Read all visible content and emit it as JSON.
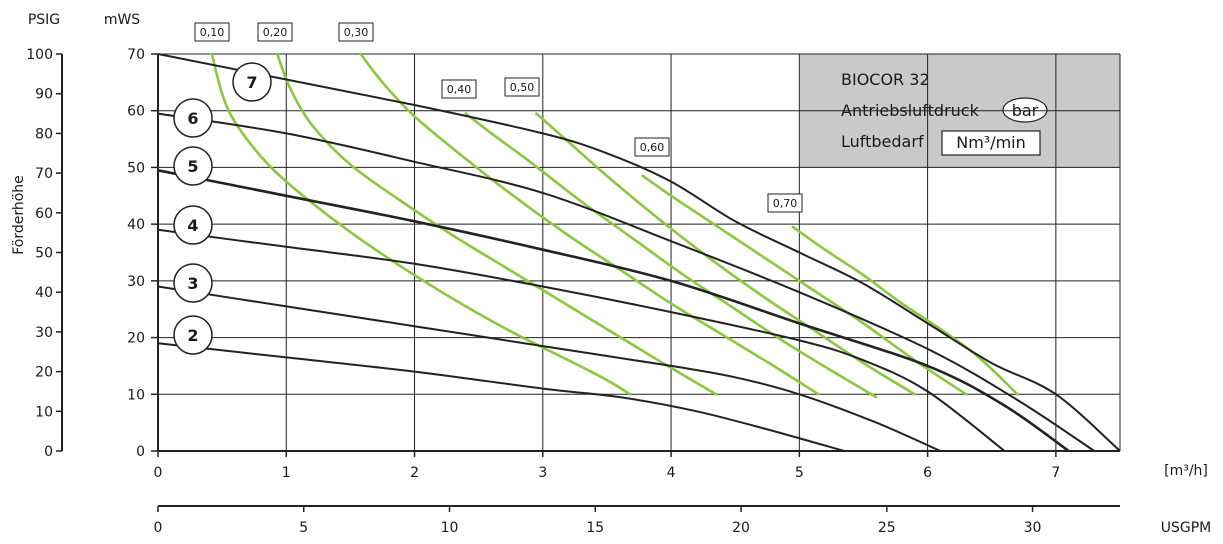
{
  "chart_data": {
    "type": "line",
    "title": "",
    "legend": {
      "model": "BIOCOR 32",
      "pressure_label": "Antriebsluftdruck",
      "pressure_unit": "bar",
      "air_label": "Luftbedarf",
      "air_unit": "Nm³/min"
    },
    "ylabel": "Förderhöhe",
    "unit_psig": "PSIG",
    "unit_mws": "mWS",
    "unit_flow_m3h": "[m³/h]",
    "unit_usgpm": "USGPM",
    "xlim": [
      0,
      7.5
    ],
    "ylim_mws": [
      0,
      70
    ],
    "ylim_psig": [
      0,
      100
    ],
    "usgpm_lim": [
      0,
      33
    ],
    "x_ticks": [
      "0",
      "1",
      "2",
      "3",
      "4",
      "5",
      "6",
      "7"
    ],
    "mws_ticks": [
      "0",
      "10",
      "20",
      "30",
      "40",
      "50",
      "60",
      "70"
    ],
    "psig_ticks": [
      "0",
      "10",
      "20",
      "30",
      "40",
      "50",
      "60",
      "70",
      "80",
      "90",
      "100"
    ],
    "usgpm_ticks": [
      "0",
      "5",
      "10",
      "15",
      "20",
      "25",
      "30"
    ],
    "pressure_series": [
      {
        "name": "2",
        "x": [
          0,
          1,
          2,
          3,
          3.6,
          4.2,
          4.8,
          5.35
        ],
        "y": [
          19,
          16.5,
          14,
          11,
          9.5,
          7,
          3.5,
          0
        ]
      },
      {
        "name": "3",
        "x": [
          0,
          1,
          2,
          3,
          4,
          4.5,
          5,
          5.6,
          6.1
        ],
        "y": [
          29,
          25.5,
          22,
          18.5,
          15,
          13,
          10,
          5,
          0
        ]
      },
      {
        "name": "4",
        "x": [
          0,
          1,
          2,
          3,
          4,
          5,
          5.5,
          6,
          6.6
        ],
        "y": [
          39,
          36,
          33,
          29,
          24.5,
          19.5,
          16,
          10.5,
          0
        ]
      },
      {
        "name": "5",
        "x": [
          0,
          1,
          2,
          3,
          4,
          5,
          6,
          6.6,
          7.1
        ],
        "y": [
          49.5,
          45,
          40.5,
          35.5,
          30,
          22.5,
          15,
          8,
          0
        ]
      },
      {
        "name": "6",
        "x": [
          0,
          1,
          2,
          3,
          4,
          5,
          6,
          6.7,
          7.3
        ],
        "y": [
          59.5,
          56,
          51,
          45.5,
          37,
          28,
          18,
          9,
          0
        ]
      },
      {
        "name": "7",
        "x": [
          0,
          1,
          2,
          3,
          3.5,
          4,
          4.5,
          5,
          5.5,
          6,
          6.5,
          7,
          7.5
        ],
        "y": [
          70,
          65.5,
          61,
          56,
          52.5,
          47.5,
          40.5,
          35,
          29.5,
          22.5,
          15.5,
          10,
          0
        ]
      }
    ],
    "air_series": [
      {
        "name": "0,10",
        "x": [
          0.42,
          0.5,
          0.6,
          0.8,
          1.0,
          1.3,
          1.6,
          2.0,
          2.4,
          2.8,
          3.2,
          3.5,
          3.68
        ],
        "y": [
          70,
          63,
          58,
          52,
          47.5,
          42,
          37,
          31,
          25.5,
          20.5,
          16,
          12.5,
          10
        ]
      },
      {
        "name": "0,20",
        "x": [
          0.93,
          1.03,
          1.2,
          1.5,
          1.9,
          2.3,
          2.7,
          3.1,
          3.5,
          3.9,
          4.35
        ],
        "y": [
          70,
          64,
          57.5,
          50.5,
          44,
          38,
          32.5,
          27,
          21.5,
          16,
          10
        ]
      },
      {
        "name": "0,30",
        "x": [
          1.58,
          1.75,
          2.0,
          2.4,
          2.8,
          3.2,
          3.6,
          4.0,
          4.4,
          4.8,
          5.15
        ],
        "y": [
          70,
          65,
          59,
          51.5,
          44.5,
          38,
          32,
          26,
          20.5,
          15,
          10
        ]
      },
      {
        "name": "0,40",
        "x": [
          2.4,
          2.6,
          2.9,
          3.3,
          3.7,
          4.1,
          4.5,
          4.9,
          5.3,
          5.6
        ],
        "y": [
          59.5,
          56,
          51,
          44,
          37.5,
          31,
          25,
          19,
          13.5,
          9.5
        ]
      },
      {
        "name": "0,50",
        "x": [
          2.95,
          3.2,
          3.5,
          3.9,
          4.3,
          4.7,
          5.1,
          5.5,
          5.9
        ],
        "y": [
          59.5,
          54.5,
          48.5,
          41,
          34,
          27.5,
          21.5,
          15.5,
          10
        ]
      },
      {
        "name": "0,60",
        "x": [
          3.78,
          4.0,
          4.3,
          4.7,
          5.1,
          5.5,
          5.9,
          6.3
        ],
        "y": [
          48.5,
          45,
          40.5,
          34.5,
          28.5,
          22.5,
          16,
          10
        ]
      },
      {
        "name": "0,70",
        "x": [
          4.95,
          5.2,
          5.5,
          5.8,
          6.1,
          6.4,
          6.7
        ],
        "y": [
          39.5,
          35.5,
          31,
          26,
          21.5,
          16.5,
          10
        ]
      }
    ],
    "colors": {
      "air": "#8dc63f",
      "pressure": "#222222",
      "legend_bg": "#c9c9c9",
      "grid": "#222222"
    }
  }
}
